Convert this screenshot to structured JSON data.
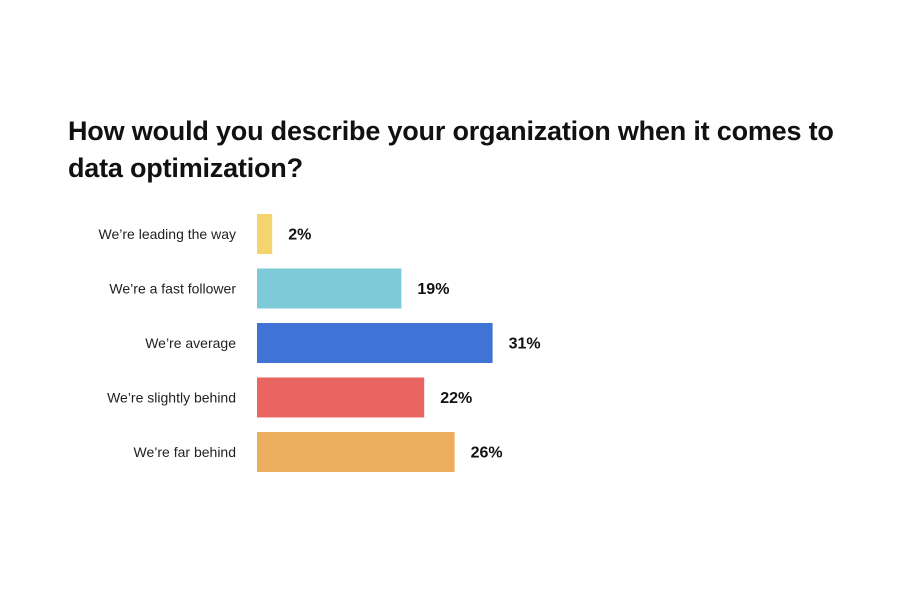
{
  "chart_data": {
    "type": "bar",
    "orientation": "horizontal",
    "title": "How would you describe your organization when it comes to data optimization?",
    "xlabel": "",
    "ylabel": "",
    "categories": [
      "We’re leading the way",
      "We’re a fast follower",
      "We’re average",
      "We’re slightly behind",
      "We’re far behind"
    ],
    "values": [
      2,
      19,
      31,
      22,
      26
    ],
    "value_labels": [
      "2%",
      "19%",
      "31%",
      "22%",
      "26%"
    ],
    "colors": [
      "#F3D46E",
      "#7ECAD8",
      "#3F74D6",
      "#E96561",
      "#EDAD5E"
    ],
    "unit": "%",
    "grid": false,
    "legend": "none"
  }
}
